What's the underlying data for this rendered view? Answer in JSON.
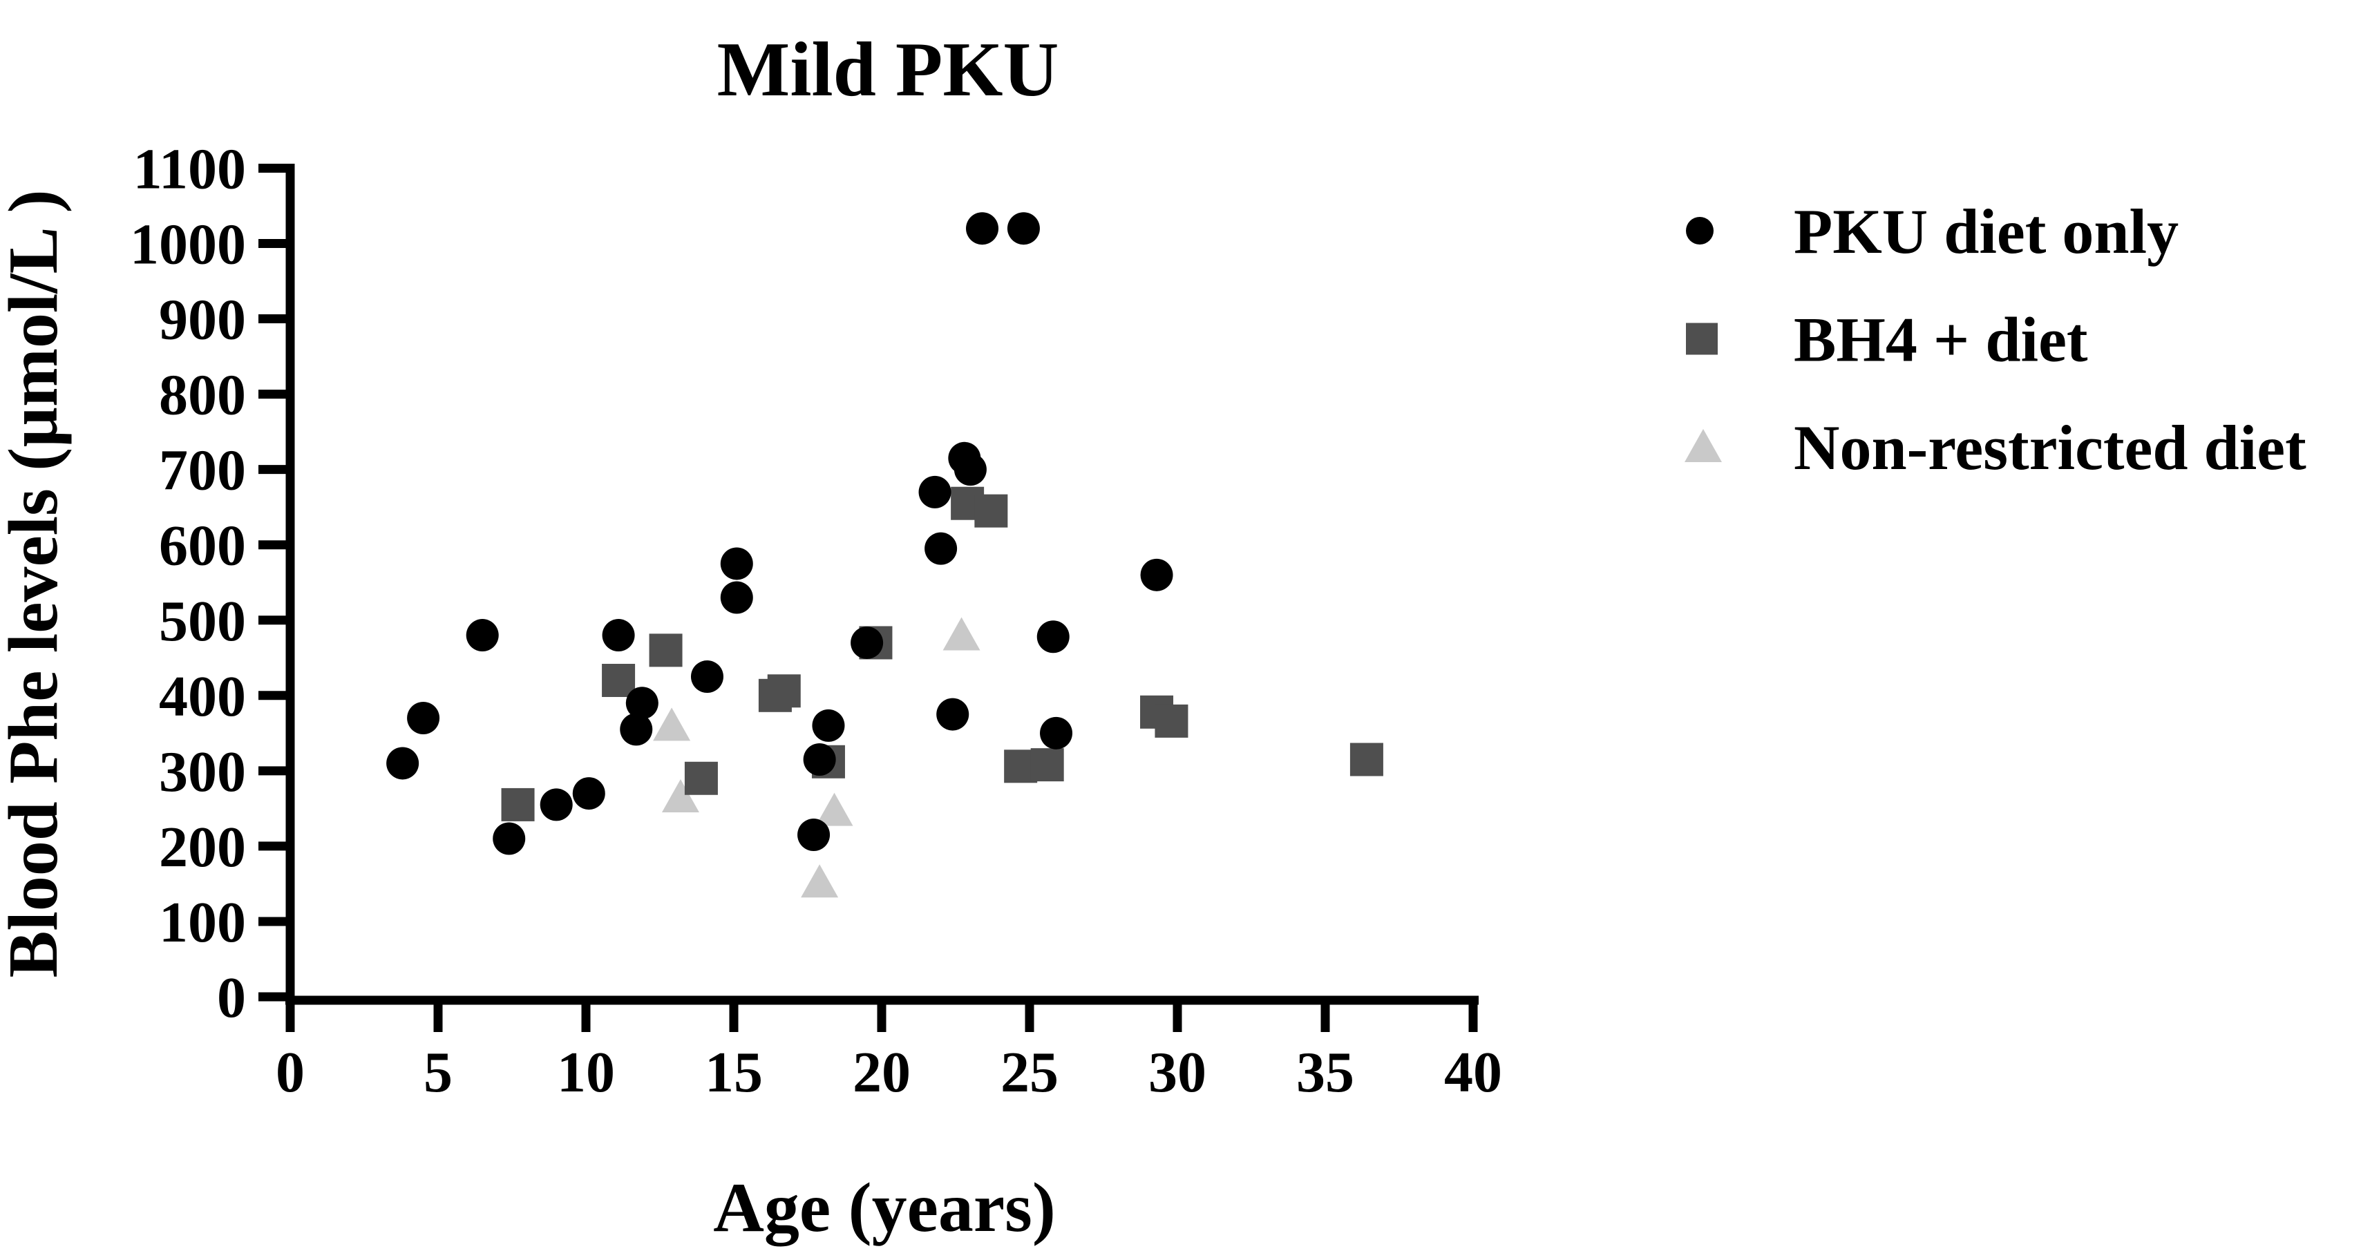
{
  "chart_data": {
    "type": "scatter",
    "title": "Mild PKU",
    "xlabel": "Age (years)",
    "ylabel": "Blood Phe levels (µmol/L )",
    "xlim": [
      0,
      40
    ],
    "ylim": [
      0,
      1100
    ],
    "x_ticks": [
      0,
      5,
      10,
      15,
      20,
      25,
      30,
      35,
      40
    ],
    "y_ticks": [
      0,
      100,
      200,
      300,
      400,
      500,
      600,
      700,
      800,
      900,
      1000,
      1100
    ],
    "grid": false,
    "legend_position": "right",
    "axis_color": "#000000",
    "background_color": "#ffffff",
    "series": [
      {
        "name": "PKU diet only",
        "marker": "circle",
        "color": "#000000",
        "points": [
          [
            3.8,
            310
          ],
          [
            4.5,
            370
          ],
          [
            6.5,
            480
          ],
          [
            7.4,
            210
          ],
          [
            9.0,
            255
          ],
          [
            10.1,
            270
          ],
          [
            11.1,
            480
          ],
          [
            11.7,
            355
          ],
          [
            11.9,
            390
          ],
          [
            14.1,
            425
          ],
          [
            15.1,
            575
          ],
          [
            15.1,
            530
          ],
          [
            17.7,
            215
          ],
          [
            17.9,
            315
          ],
          [
            18.2,
            360
          ],
          [
            19.5,
            470
          ],
          [
            21.8,
            670
          ],
          [
            22.0,
            595
          ],
          [
            22.4,
            375
          ],
          [
            22.8,
            715
          ],
          [
            23.0,
            700
          ],
          [
            23.4,
            1020
          ],
          [
            24.8,
            1020
          ],
          [
            25.8,
            478
          ],
          [
            25.9,
            350
          ],
          [
            29.3,
            560
          ]
        ]
      },
      {
        "name": "BH4 + diet",
        "marker": "square",
        "color": "#4f4f4f",
        "points": [
          [
            7.7,
            255
          ],
          [
            11.1,
            420
          ],
          [
            12.7,
            460
          ],
          [
            13.9,
            290
          ],
          [
            16.4,
            400
          ],
          [
            16.7,
            406
          ],
          [
            18.2,
            312
          ],
          [
            19.8,
            470
          ],
          [
            22.9,
            655
          ],
          [
            23.7,
            645
          ],
          [
            24.7,
            306
          ],
          [
            25.6,
            308
          ],
          [
            29.3,
            378
          ],
          [
            29.8,
            366
          ],
          [
            36.4,
            315
          ]
        ]
      },
      {
        "name": "Non-restricted diet",
        "marker": "triangle",
        "color": "#c9c9c9",
        "points": [
          [
            12.9,
            360
          ],
          [
            13.2,
            265
          ],
          [
            17.9,
            152
          ],
          [
            18.4,
            247
          ],
          [
            22.7,
            480
          ]
        ]
      }
    ]
  }
}
